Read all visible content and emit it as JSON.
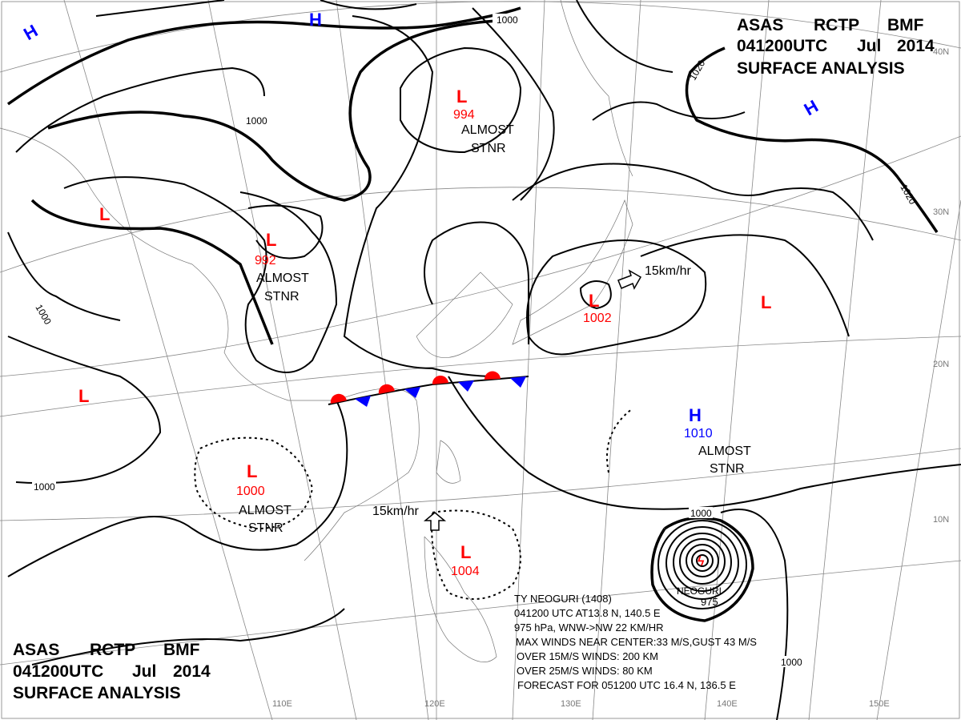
{
  "header_top": {
    "line1": [
      "ASAS",
      "RCTP",
      "BMF"
    ],
    "line2": [
      "041200UTC",
      "Jul",
      "2014"
    ],
    "line3": "SURFACE ANALYSIS"
  },
  "header_bottom": {
    "line1": [
      "ASAS",
      "RCTP",
      "BMF"
    ],
    "line2": [
      "041200UTC",
      "Jul",
      "2014"
    ],
    "line3": "SURFACE ANALYSIS"
  },
  "colors": {
    "low": "#ff0000",
    "high": "#0000ff",
    "isobar": "#000000",
    "grid": "#888888",
    "warm_front": "#ff0000",
    "cold_front": "#0000ff"
  },
  "pressure_centers": [
    {
      "type": "L",
      "value": "994"
    },
    {
      "type": "L",
      "value": "992"
    },
    {
      "type": "L",
      "value": "1000"
    },
    {
      "type": "L",
      "value": "1004"
    },
    {
      "type": "L",
      "value": "1002"
    },
    {
      "type": "H",
      "value": "1010"
    },
    {
      "type": "L",
      "value": ""
    },
    {
      "type": "L",
      "value": ""
    },
    {
      "type": "L",
      "value": ""
    },
    {
      "type": "H",
      "value": ""
    },
    {
      "type": "H",
      "value": ""
    },
    {
      "type": "H",
      "value": ""
    }
  ],
  "stnr_labels": [
    [
      "ALMOST",
      "STNR"
    ],
    [
      "ALMOST",
      "STNR"
    ],
    [
      "ALMOST",
      "STNR"
    ],
    [
      "ALMOST",
      "STNR"
    ]
  ],
  "motion_labels": [
    "15km/hr",
    "15km/hr"
  ],
  "isobar_labels": [
    "1000",
    "1000",
    "1000",
    "1000",
    "1000",
    "1000",
    "1020",
    "1020"
  ],
  "typhoon": {
    "name": "NEOGURI",
    "pressure": "975",
    "info": [
      "TY NEOGURI (1408)",
      "041200 UTC  AT13.8 N, 140.5 E",
      "975 hPa, WNW->NW  22 KM/HR",
      "MAX WINDS NEAR CENTER:33 M/S,GUST 43 M/S",
      "OVER 15M/S WINDS: 200 KM",
      "OVER 25M/S WINDS: 80 KM",
      "FORECAST FOR 051200 UTC 16.4 N, 136.5 E"
    ]
  },
  "lat_labels": [
    "40N",
    "30N",
    "20N",
    "10N"
  ],
  "lon_labels": [
    "110E",
    "120E",
    "130E",
    "140E",
    "150E"
  ]
}
